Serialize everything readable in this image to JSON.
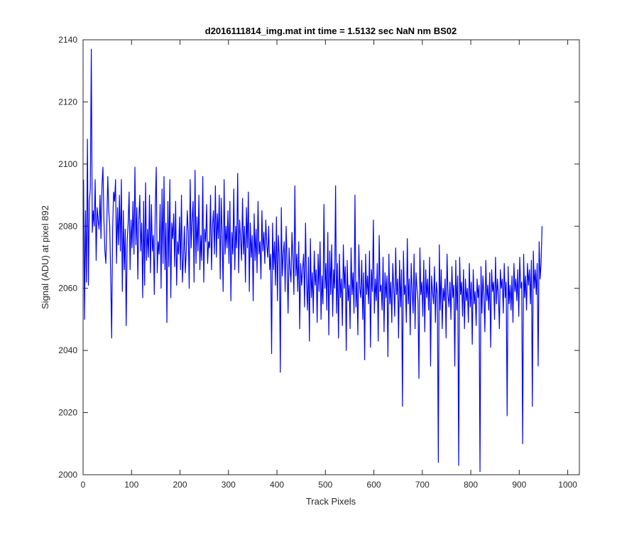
{
  "chart_data": {
    "type": "line",
    "title": "d2016111814_img.mat int time = 1.5132 sec  NaN nm BS02",
    "xlabel": "Track Pixels",
    "ylabel": "Signal (ADU) at pixel 892",
    "xlim": [
      0,
      1024
    ],
    "ylim": [
      2000,
      2140
    ],
    "xticks": [
      0,
      100,
      200,
      300,
      400,
      500,
      600,
      700,
      800,
      900,
      1000
    ],
    "yticks": [
      2000,
      2020,
      2040,
      2060,
      2080,
      2100,
      2120,
      2140
    ],
    "grid": false,
    "series_color": "#0000ff",
    "series": [
      {
        "x_start": 1,
        "x_step": 2,
        "values": [
          2095,
          2050,
          2085,
          2062,
          2108,
          2061,
          2088,
          2092,
          2137,
          2078,
          2085,
          2080,
          2095,
          2069,
          2086,
          2082,
          2079,
          2090,
          2076,
          2093,
          2099,
          2082,
          2072,
          2068,
          2081,
          2096,
          2085,
          2080,
          2064,
          2044,
          2079,
          2091,
          2088,
          2095,
          2068,
          2086,
          2074,
          2090,
          2072,
          2095,
          2059,
          2085,
          2066,
          2079,
          2048,
          2075,
          2081,
          2091,
          2066,
          2082,
          2073,
          2088,
          2071,
          2099,
          2074,
          2086,
          2063,
          2082,
          2090,
          2072,
          2081,
          2057,
          2088,
          2061,
          2094,
          2069,
          2079,
          2070,
          2090,
          2065,
          2087,
          2072,
          2077,
          2058,
          2086,
          2099,
          2065,
          2075,
          2071,
          2087,
          2060,
          2092,
          2068,
          2096,
          2066,
          2081,
          2049,
          2088,
          2067,
          2095,
          2057,
          2081,
          2076,
          2084,
          2067,
          2088,
          2061,
          2075,
          2071,
          2083,
          2066,
          2090,
          2062,
          2070,
          2080,
          2065,
          2072,
          2085,
          2078,
          2060,
          2095,
          2073,
          2082,
          2088,
          2062,
          2098,
          2068,
          2083,
          2072,
          2090,
          2066,
          2077,
          2069,
          2096,
          2062,
          2079,
          2075,
          2087,
          2068,
          2075,
          2073,
          2090,
          2066,
          2080,
          2085,
          2071,
          2093,
          2070,
          2084,
          2076,
          2090,
          2063,
          2089,
          2077,
          2059,
          2095,
          2071,
          2080,
          2073,
          2085,
          2068,
          2088,
          2056,
          2078,
          2071,
          2092,
          2066,
          2080,
          2073,
          2097,
          2065,
          2082,
          2076,
          2069,
          2089,
          2071,
          2080,
          2062,
          2086,
          2073,
          2091,
          2059,
          2081,
          2070,
          2077,
          2056,
          2084,
          2069,
          2079,
          2065,
          2088,
          2071,
          2075,
          2063,
          2085,
          2072,
          2078,
          2068,
          2082,
          2074,
          2070,
          2080,
          2066,
          2071,
          2039,
          2081,
          2066,
          2075,
          2061,
          2083,
          2056,
          2077,
          2070,
          2033,
          2086,
          2064,
          2071,
          2075,
          2059,
          2080,
          2068,
          2052,
          2073,
          2066,
          2062,
          2078,
          2070,
          2058,
          2093,
          2064,
          2071,
          2059,
          2075,
          2047,
          2068,
          2061,
          2066,
          2071,
          2054,
          2081,
          2062,
          2053,
          2070,
          2043,
          2076,
          2057,
          2065,
          2052,
          2072,
          2061,
          2066,
          2049,
          2071,
          2059,
          2075,
          2050,
          2064,
          2055,
          2087,
          2060,
          2068,
          2053,
          2078,
          2045,
          2072,
          2058,
          2074,
          2051,
          2066,
          2060,
          2093,
          2052,
          2068,
          2044,
          2071,
          2057,
          2063,
          2048,
          2074,
          2060,
          2067,
          2040,
          2069,
          2056,
          2061,
          2047,
          2073,
          2058,
          2065,
          2052,
          2090,
          2054,
          2062,
          2045,
          2074,
          2060,
          2057,
          2069,
          2050,
          2065,
          2037,
          2071,
          2058,
          2064,
          2055,
          2072,
          2041,
          2066,
          2059,
          2082,
          2052,
          2063,
          2056,
          2068,
          2043,
          2077,
          2059,
          2061,
          2053,
          2070,
          2046,
          2065,
          2057,
          2064,
          2038,
          2071,
          2055,
          2062,
          2049,
          2068,
          2060,
          2051,
          2073,
          2058,
          2063,
          2044,
          2069,
          2054,
          2066,
          2022,
          2072,
          2058,
          2061,
          2049,
          2076,
          2055,
          2063,
          2045,
          2068,
          2059,
          2052,
          2071,
          2047,
          2065,
          2060,
          2056,
          2031,
          2073,
          2058,
          2062,
          2051,
          2069,
          2046,
          2066,
          2057,
          2063,
          2053,
          2070,
          2035,
          2064,
          2059,
          2055,
          2067,
          2049,
          2062,
          2058,
          2004,
          2074,
          2053,
          2066,
          2047,
          2060,
          2056,
          2063,
          2044,
          2071,
          2058,
          2054,
          2062,
          2050,
          2067,
          2057,
          2061,
          2035,
          2069,
          2053,
          2064,
          2003,
          2070,
          2058,
          2062,
          2051,
          2066,
          2047,
          2063,
          2056,
          2060,
          2049,
          2068,
          2054,
          2062,
          2042,
          2066,
          2055,
          2059,
          2048,
          2063,
          2057,
          2061,
          2001,
          2067,
          2052,
          2064,
          2058,
          2046,
          2069,
          2056,
          2061,
          2053,
          2065,
          2041,
          2066,
          2059,
          2062,
          2050,
          2070,
          2055,
          2063,
          2058,
          2047,
          2066,
          2060,
          2063,
          2052,
          2068,
          2057,
          2062,
          2019,
          2067,
          2055,
          2061,
          2053,
          2064,
          2049,
          2068,
          2059,
          2063,
          2056,
          2066,
          2051,
          2070,
          2060,
          2062,
          2010,
          2071,
          2057,
          2064,
          2053,
          2068,
          2061,
          2066,
          2055,
          2069,
          2022,
          2072,
          2060,
          2066,
          2058,
          2068,
          2035,
          2075,
          2063,
          2068,
          2080
        ]
      }
    ]
  }
}
